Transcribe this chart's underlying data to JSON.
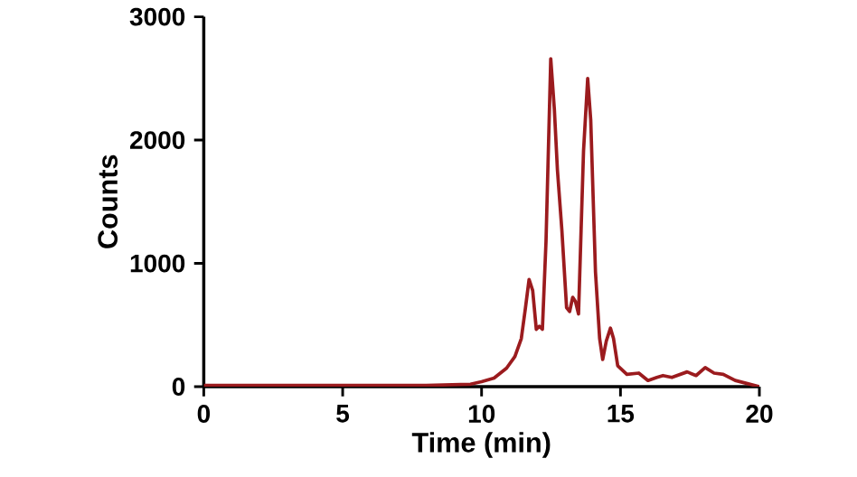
{
  "chart_data": {
    "type": "line",
    "xlabel": "Time (min)",
    "ylabel": "Counts",
    "xlim": [
      0,
      20
    ],
    "ylim": [
      0,
      3000
    ],
    "xticks": [
      0,
      5,
      10,
      15,
      20
    ],
    "yticks": [
      0,
      1000,
      2000,
      3000
    ],
    "grid": false,
    "marker": "none",
    "line_style": "solid",
    "series": [
      {
        "color": "#9b1b1e",
        "x": [
          0,
          2,
          4,
          6,
          8,
          9.6,
          10.0,
          10.45,
          10.9,
          11.2,
          11.43,
          11.58,
          11.71,
          11.84,
          11.97,
          12.08,
          12.19,
          12.32,
          12.49,
          12.62,
          12.73,
          12.89,
          13.06,
          13.17,
          13.28,
          13.38,
          13.49,
          13.67,
          13.82,
          13.93,
          14.1,
          14.25,
          14.36,
          14.49,
          14.64,
          14.75,
          14.9,
          15.23,
          15.66,
          15.99,
          16.31,
          16.53,
          16.85,
          17.4,
          17.72,
          18.05,
          18.37,
          18.7,
          19.13,
          19.57,
          20
        ],
        "values": [
          10,
          10,
          10,
          10,
          10,
          20,
          40,
          70,
          150,
          245,
          390,
          640,
          870,
          780,
          465,
          490,
          465,
          1180,
          2660,
          2250,
          1760,
          1270,
          640,
          610,
          725,
          690,
          590,
          1910,
          2500,
          2160,
          930,
          390,
          220,
          370,
          475,
          390,
          170,
          100,
          110,
          50,
          75,
          90,
          75,
          120,
          90,
          155,
          110,
          100,
          50,
          25,
          0
        ]
      }
    ]
  }
}
